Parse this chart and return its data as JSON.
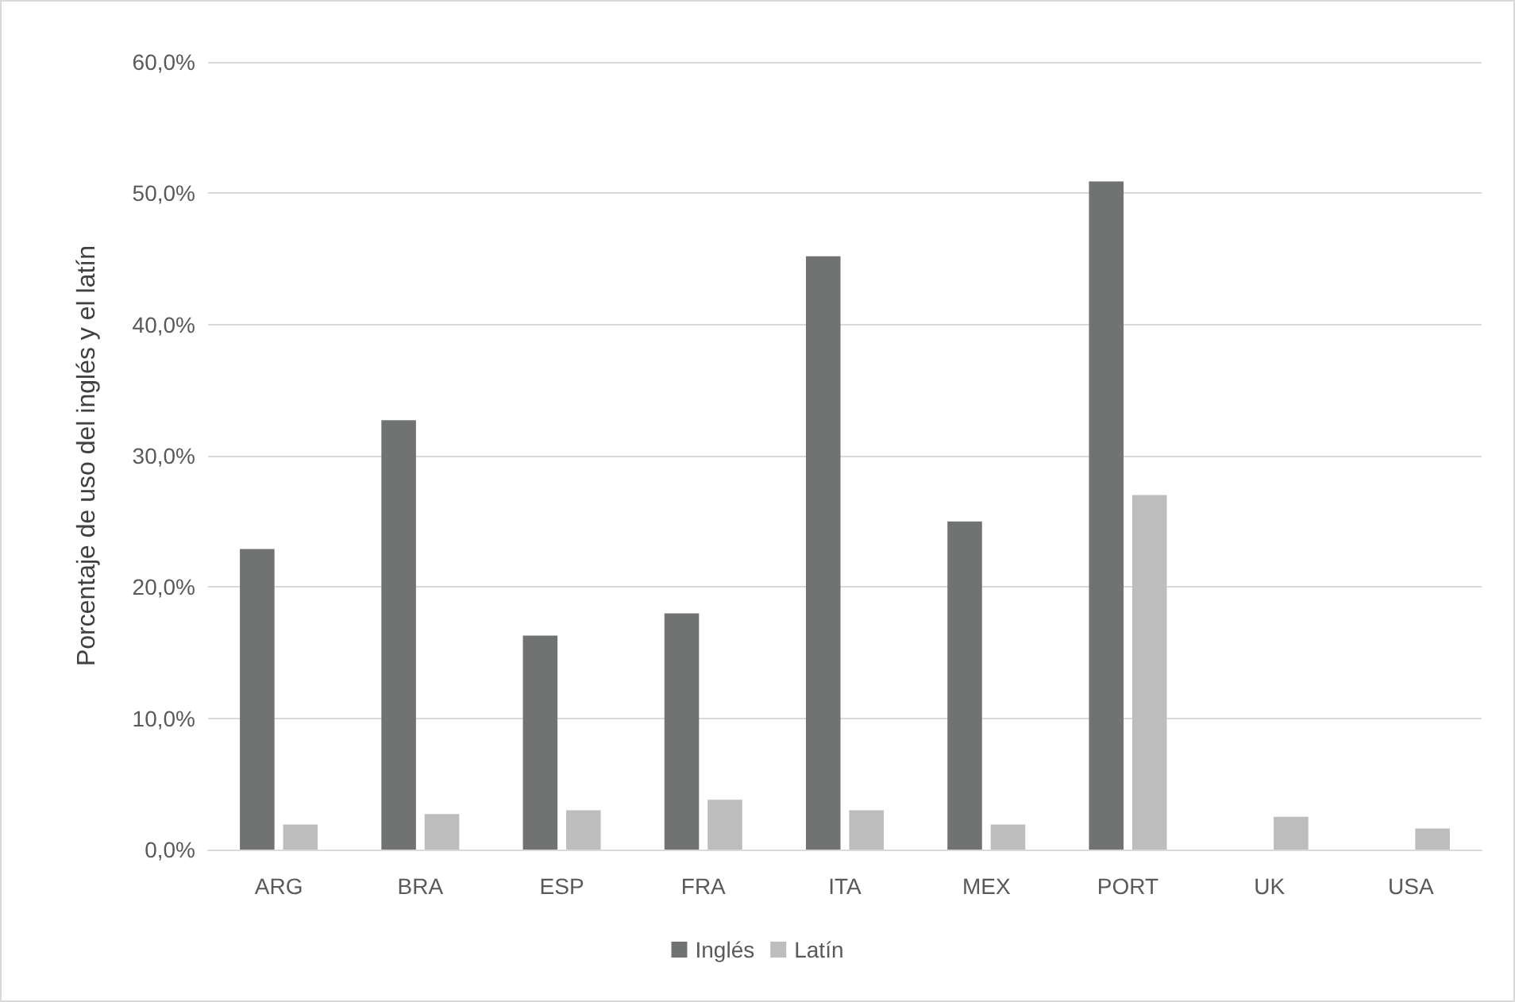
{
  "chart_data": {
    "type": "bar",
    "ylabel": "Porcentaje de uso del inglés y el latín",
    "categories": [
      "ARG",
      "BRA",
      "ESP",
      "FRA",
      "ITA",
      "MEX",
      "PORT",
      "UK",
      "USA"
    ],
    "series": [
      {
        "name": "Inglés",
        "color": "#717372",
        "values": [
          22.9,
          32.7,
          16.3,
          18.0,
          45.2,
          25.0,
          50.9,
          null,
          null
        ]
      },
      {
        "name": "Latín",
        "color": "#bdbdbd",
        "values": [
          1.9,
          2.7,
          3.0,
          3.8,
          3.0,
          1.9,
          27.0,
          2.5,
          1.6
        ]
      }
    ],
    "ylim": [
      0,
      60
    ],
    "yticks": [
      {
        "value": 0,
        "label": "0,0%"
      },
      {
        "value": 10,
        "label": "10,0%"
      },
      {
        "value": 20,
        "label": "20,0%"
      },
      {
        "value": 30,
        "label": "30,0%"
      },
      {
        "value": 40,
        "label": "40,0%"
      },
      {
        "value": 50,
        "label": "50,0%"
      },
      {
        "value": 60,
        "label": "60,0%"
      }
    ],
    "grid": "y",
    "legend": "bottom"
  }
}
